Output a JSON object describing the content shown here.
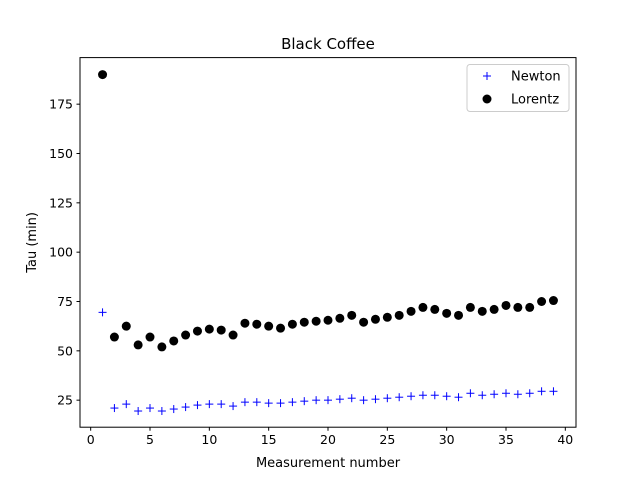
{
  "chart_data": {
    "type": "scatter",
    "title": "Black Coffee",
    "xlabel": "Measurement number",
    "ylabel": "Tau (min)",
    "xlim": [
      -0.9,
      40.9
    ],
    "ylim": [
      11.3,
      198.6
    ],
    "xticks": [
      0,
      5,
      10,
      15,
      20,
      25,
      30,
      35,
      40
    ],
    "yticks": [
      25,
      50,
      75,
      100,
      125,
      150,
      175
    ],
    "grid": false,
    "legend_position": "top-right",
    "series": [
      {
        "name": "Newton",
        "marker": "plus",
        "color": "#0000ff",
        "x": [
          1,
          2,
          3,
          4,
          5,
          6,
          7,
          8,
          9,
          10,
          11,
          12,
          13,
          14,
          15,
          16,
          17,
          18,
          19,
          20,
          21,
          22,
          23,
          24,
          25,
          26,
          27,
          28,
          29,
          30,
          31,
          32,
          33,
          34,
          35,
          36,
          37,
          38,
          39
        ],
        "y": [
          69.5,
          21,
          23,
          19.5,
          21,
          19.5,
          20.5,
          21.5,
          22.5,
          23,
          23,
          22,
          24,
          24,
          23.5,
          23.5,
          24,
          24.5,
          25,
          25,
          25.5,
          26,
          25,
          25.5,
          26,
          26.5,
          27,
          27.5,
          27.5,
          27,
          26.5,
          28.5,
          27.5,
          28,
          28.5,
          28,
          28.5,
          29.5,
          29.5
        ]
      },
      {
        "name": "Lorentz",
        "marker": "circle",
        "color": "#000000",
        "x": [
          1,
          2,
          3,
          4,
          5,
          6,
          7,
          8,
          9,
          10,
          11,
          12,
          13,
          14,
          15,
          16,
          17,
          18,
          19,
          20,
          21,
          22,
          23,
          24,
          25,
          26,
          27,
          28,
          29,
          30,
          31,
          32,
          33,
          34,
          35,
          36,
          37,
          38,
          39
        ],
        "y": [
          190,
          57,
          62.5,
          53,
          57,
          52,
          55,
          58,
          60,
          61,
          60.5,
          58,
          64,
          63.5,
          62.5,
          61.5,
          63.5,
          64.5,
          65,
          65.5,
          66.5,
          68,
          64.5,
          66,
          67,
          68,
          70,
          72,
          71,
          69,
          68,
          72,
          70,
          71,
          73,
          72,
          72,
          75,
          75.5
        ]
      }
    ]
  }
}
